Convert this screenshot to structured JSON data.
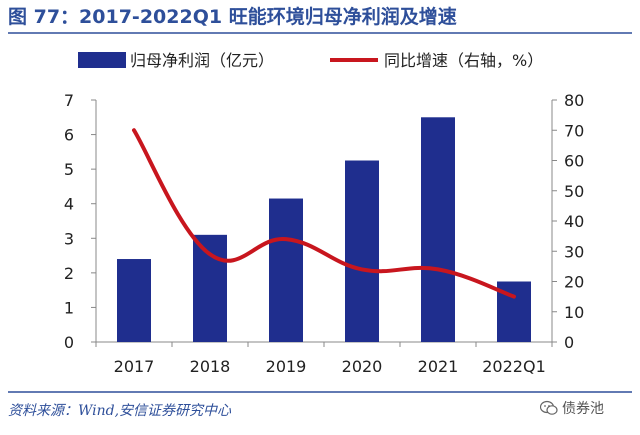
{
  "figure": {
    "title": "图 77：2017-2022Q1 旺能环境归母净利润及增速",
    "source": "资料来源：Wind,安信证券研究中心",
    "watermark": "债券池"
  },
  "colors": {
    "title": "#2e4f9a",
    "bar": "#1f2e8e",
    "line": "#c8161e",
    "border": "#2e4f9a"
  },
  "chart_data": {
    "type": "bar+line",
    "categories": [
      "2017",
      "2018",
      "2019",
      "2020",
      "2021",
      "2022Q1"
    ],
    "series": [
      {
        "name": "归母净利润（亿元）",
        "type": "bar",
        "axis": "left",
        "values": [
          2.4,
          3.1,
          4.15,
          5.25,
          6.5,
          1.75
        ]
      },
      {
        "name": "同比增速（右轴，%）",
        "type": "line",
        "axis": "right",
        "values": [
          70,
          29,
          34,
          24,
          24,
          15
        ]
      }
    ],
    "y_left": {
      "min": 0,
      "max": 7,
      "ticks": [
        "0",
        "1",
        "2",
        "3",
        "4",
        "5",
        "6",
        "7"
      ]
    },
    "y_right": {
      "min": 0,
      "max": 80,
      "ticks": [
        "0",
        "10",
        "20",
        "30",
        "40",
        "50",
        "60",
        "70",
        "80"
      ]
    },
    "legend_position": "top",
    "grid": false
  }
}
